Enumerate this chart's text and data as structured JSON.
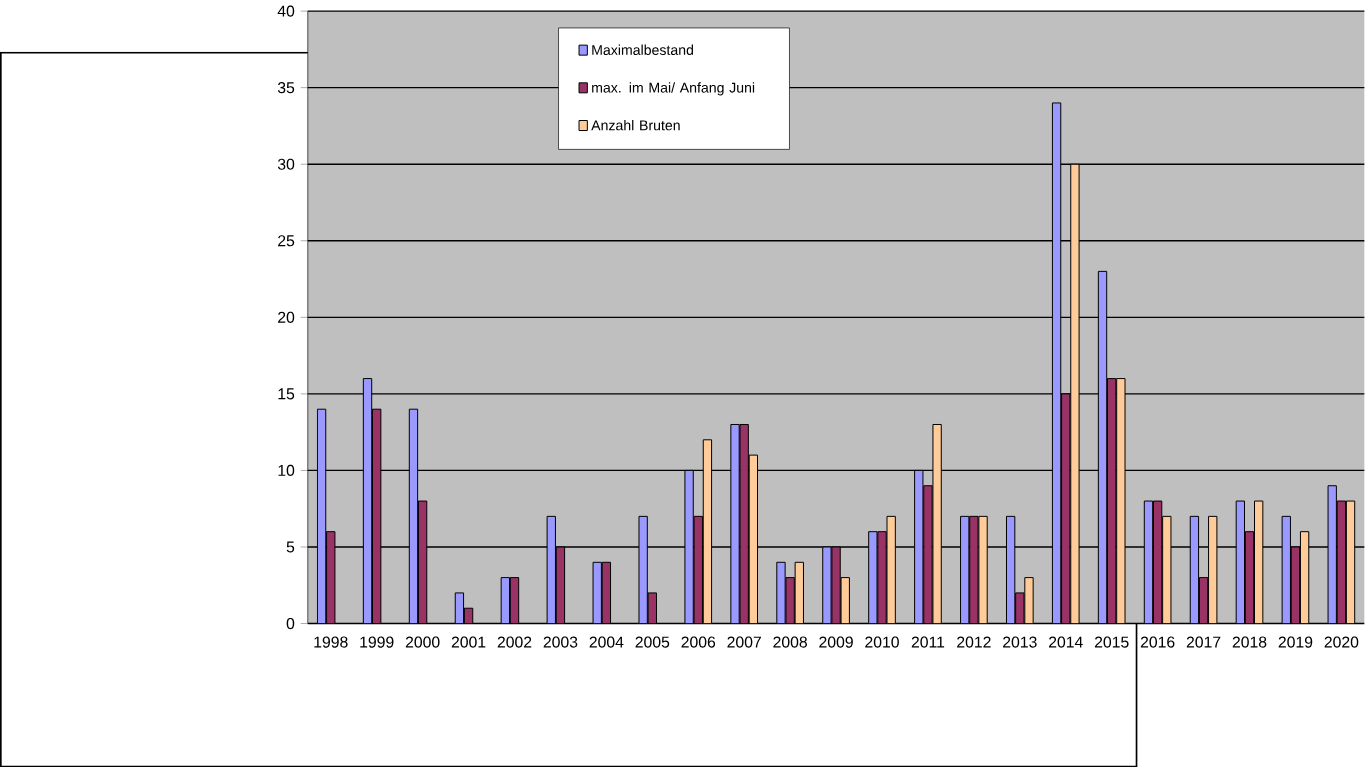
{
  "chart_data": {
    "type": "bar",
    "categories": [
      "1998",
      "1999",
      "2000",
      "2001",
      "2002",
      "2003",
      "2004",
      "2005",
      "2006",
      "2007",
      "2008",
      "2009",
      "2010",
      "2011",
      "2012",
      "2013",
      "2014",
      "2015",
      "2016",
      "2017",
      "2018",
      "2019",
      "2020"
    ],
    "series": [
      {
        "name": "Maximalbestand",
        "color": "#9999ff",
        "values": [
          14,
          16,
          14,
          2,
          3,
          7,
          4,
          7,
          10,
          13,
          4,
          5,
          6,
          10,
          7,
          7,
          34,
          23,
          8,
          7,
          8,
          7,
          9
        ]
      },
      {
        "name": "max. im Mai/ Anfang Juni",
        "color": "#993366",
        "values": [
          6,
          14,
          8,
          1,
          3,
          5,
          4,
          2,
          7,
          13,
          3,
          5,
          6,
          9,
          7,
          2,
          15,
          16,
          8,
          3,
          6,
          5,
          8
        ]
      },
      {
        "name": "Anzahl Bruten",
        "color": "#ffcc99",
        "values": [
          null,
          null,
          null,
          null,
          null,
          null,
          null,
          null,
          12,
          11,
          4,
          3,
          7,
          13,
          7,
          3,
          30,
          16,
          7,
          7,
          8,
          6,
          8
        ]
      }
    ],
    "ylim": [
      0,
      40
    ],
    "yticks": [
      0,
      5,
      10,
      15,
      20,
      25,
      30,
      35,
      40
    ],
    "grid": "y",
    "legend": "top left"
  }
}
